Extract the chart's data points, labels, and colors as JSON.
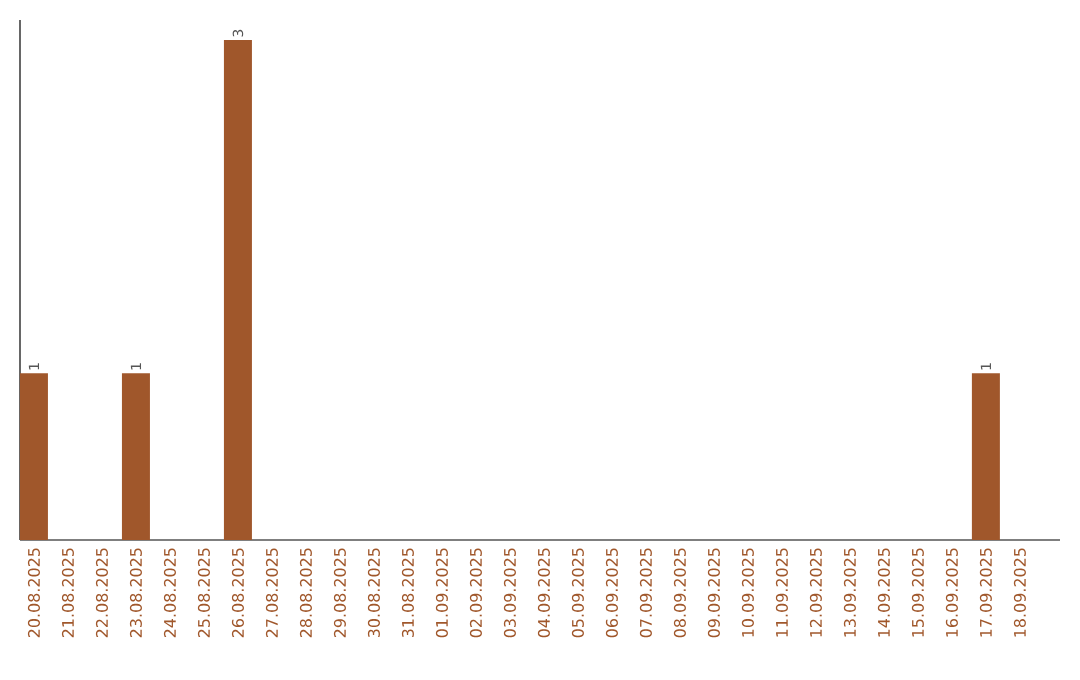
{
  "chart_data": {
    "type": "bar",
    "categories": [
      "20.08.2025",
      "21.08.2025",
      "22.08.2025",
      "23.08.2025",
      "24.08.2025",
      "25.08.2025",
      "26.08.2025",
      "27.08.2025",
      "28.08.2025",
      "29.08.2025",
      "30.08.2025",
      "31.08.2025",
      "01.09.2025",
      "02.09.2025",
      "03.09.2025",
      "04.09.2025",
      "05.09.2025",
      "06.09.2025",
      "07.09.2025",
      "08.09.2025",
      "09.09.2025",
      "10.09.2025",
      "11.09.2025",
      "12.09.2025",
      "13.09.2025",
      "14.09.2025",
      "15.09.2025",
      "16.09.2025",
      "17.09.2025",
      "18.09.2025"
    ],
    "values": [
      1,
      0,
      0,
      1,
      0,
      0,
      3,
      0,
      0,
      0,
      0,
      0,
      0,
      0,
      0,
      0,
      0,
      0,
      0,
      0,
      0,
      0,
      0,
      0,
      0,
      0,
      0,
      0,
      1,
      0
    ],
    "value_labels": [
      "1",
      null,
      null,
      "1",
      null,
      null,
      "3",
      null,
      null,
      null,
      null,
      null,
      null,
      null,
      null,
      null,
      null,
      null,
      null,
      null,
      null,
      null,
      null,
      null,
      null,
      null,
      null,
      null,
      "1",
      null
    ],
    "color": "#a0572b"
  }
}
